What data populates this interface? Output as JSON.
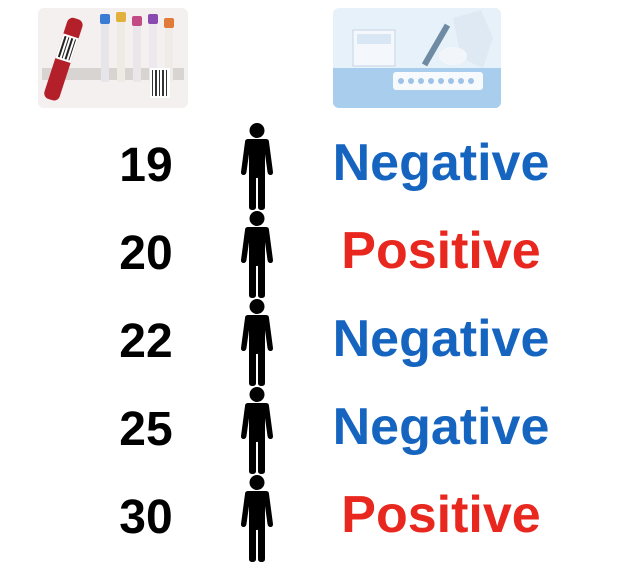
{
  "photos": {
    "left_icon": "blood-sample-tubes",
    "right_icon": "lab-technician-pipette"
  },
  "colors": {
    "negative": "#1565c0",
    "positive": "#e8281f",
    "age": "#000000",
    "person": "#000000"
  },
  "rows": [
    {
      "age": "19",
      "result": "Negative",
      "status": "negative"
    },
    {
      "age": "20",
      "result": "Positive",
      "status": "positive"
    },
    {
      "age": "22",
      "result": "Negative",
      "status": "negative"
    },
    {
      "age": "25",
      "result": "Negative",
      "status": "negative"
    },
    {
      "age": "30",
      "result": "Positive",
      "status": "positive"
    }
  ]
}
